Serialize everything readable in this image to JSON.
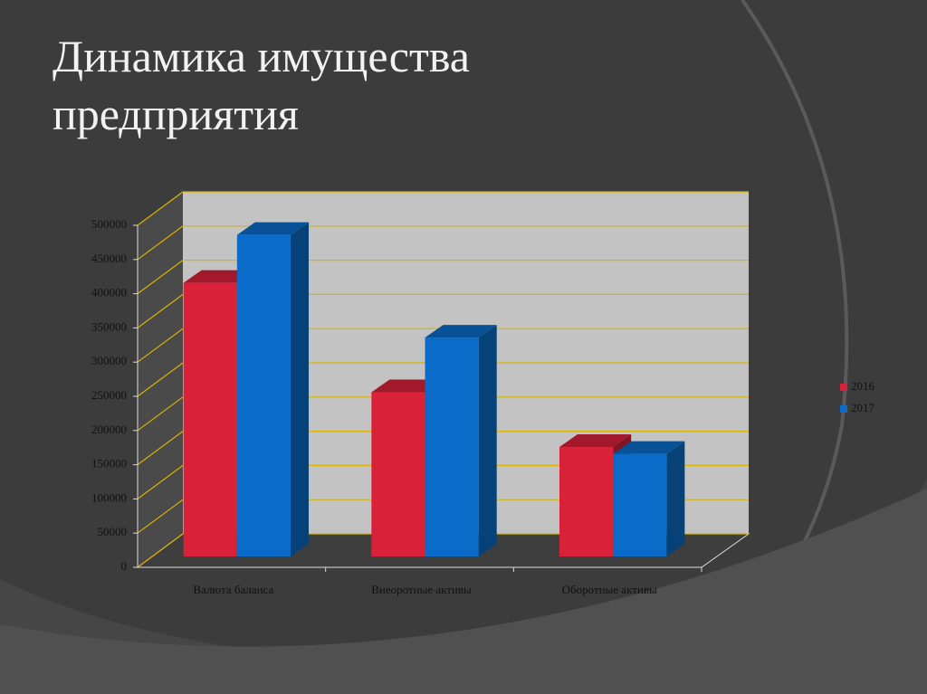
{
  "chart_data": {
    "type": "bar3d",
    "title": "Динамика имущества предприятия",
    "categories": [
      "Валюта баланса",
      "Внеоротные активы",
      "Оборотные активы"
    ],
    "series": [
      {
        "name": "2016",
        "color": "#d9213a",
        "values": [
          400000,
          240000,
          160000
        ]
      },
      {
        "name": "2017",
        "color": "#0a6cc8",
        "values": [
          470000,
          320000,
          150000
        ]
      }
    ],
    "ylim": [
      0,
      500000
    ],
    "yticks": [
      0,
      50000,
      100000,
      150000,
      200000,
      250000,
      300000,
      350000,
      400000,
      450000,
      500000
    ],
    "grid": true,
    "legend": "right"
  }
}
